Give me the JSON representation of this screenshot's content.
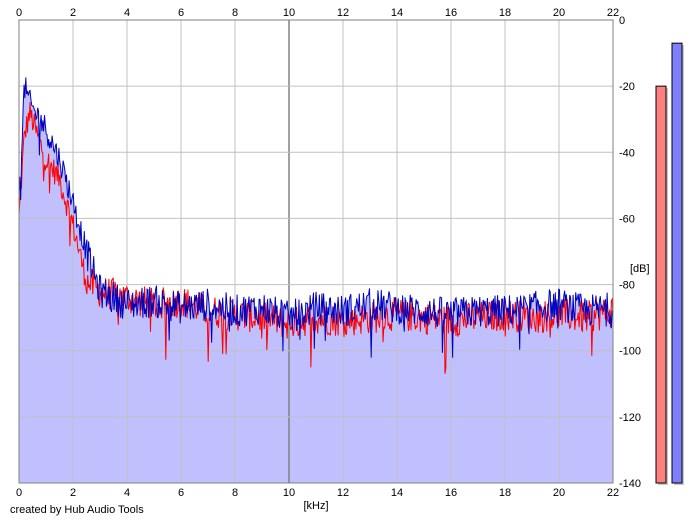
{
  "credit": "created by Hub Audio Tools",
  "colors": {
    "background": "#ffffff",
    "area_fill": "#c0c0ff",
    "grid": "#c0c0c0",
    "major_grid": "#808080",
    "series_left": "#ff0000",
    "series_right": "#0000c0",
    "meter_left": "#ff8080",
    "meter_right": "#8080ff"
  },
  "chart_data": {
    "type": "line",
    "title": "",
    "xlabel": "[kHz]",
    "ylabel": "[dB]",
    "xlim": [
      0,
      22
    ],
    "ylim": [
      -140,
      0
    ],
    "x_ticks": [
      "0",
      "2",
      "4",
      "6",
      "8",
      "10",
      "12",
      "14",
      "16",
      "18",
      "20",
      "22"
    ],
    "y_ticks": [
      "0",
      "-20",
      "-40",
      "-60",
      "-80",
      "-100",
      "-120",
      "-140"
    ],
    "grid": true,
    "legend": "none",
    "series": [
      {
        "color": "#ff0000",
        "x": [
          0,
          0.2,
          0.4,
          0.6,
          0.8,
          1.0,
          1.5,
          2.0,
          2.5,
          3.0,
          4.0,
          5.0,
          6.0,
          7.0,
          8.0,
          9.0,
          10.0,
          11.0,
          12.0,
          13.0,
          14.0,
          15.0,
          16.0,
          17.0,
          18.0,
          19.0,
          20.0,
          21.0,
          22.0
        ],
        "values": [
          -60,
          -35,
          -28,
          -33,
          -38,
          -42,
          -48,
          -62,
          -79,
          -82,
          -84,
          -86,
          -85,
          -88,
          -89,
          -90,
          -92,
          -90,
          -91,
          -90,
          -89,
          -90,
          -91,
          -90,
          -89,
          -90,
          -89,
          -90,
          -88
        ]
      },
      {
        "color": "#0000c0",
        "x": [
          0,
          0.2,
          0.4,
          0.6,
          0.8,
          1.0,
          1.5,
          2.0,
          2.5,
          3.0,
          4.0,
          5.0,
          6.0,
          7.0,
          8.0,
          9.0,
          10.0,
          11.0,
          12.0,
          13.0,
          14.0,
          15.0,
          16.0,
          17.0,
          18.0,
          19.0,
          20.0,
          21.0,
          22.0
        ],
        "values": [
          -55,
          -20,
          -25,
          -28,
          -30,
          -33,
          -42,
          -55,
          -70,
          -82,
          -86,
          -85,
          -87,
          -86,
          -88,
          -87,
          -90,
          -87,
          -88,
          -86,
          -87,
          -88,
          -89,
          -88,
          -88,
          -87,
          -86,
          -88,
          -87
        ]
      }
    ],
    "meters": [
      {
        "color": "#ff8080",
        "value": -20
      },
      {
        "color": "#8080ff",
        "value": -7
      }
    ]
  }
}
